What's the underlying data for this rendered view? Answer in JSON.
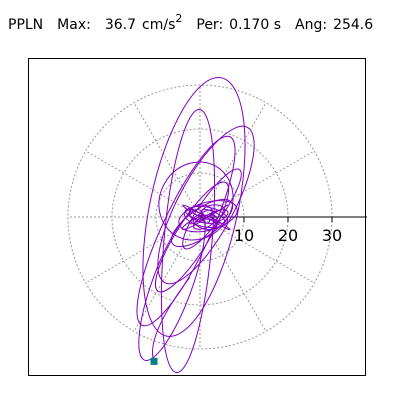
{
  "header": {
    "station": "PPLN",
    "max_label": "Max:",
    "max_value": "36.7",
    "max_unit_base": "cm/s",
    "max_unit_exp": "2",
    "per_label": "Per:",
    "per_value": "0.170 s",
    "ang_label": "Ang:",
    "ang_value": "254.6"
  },
  "chart_data": {
    "type": "polar-particle-motion",
    "title": "PPLN Max: 36.7 cm/s2 Per: 0.170 s Ang: 254.6",
    "radial_ticks": [
      {
        "value": 10,
        "label": "10"
      },
      {
        "value": 20,
        "label": "20"
      },
      {
        "value": 30,
        "label": "30"
      }
    ],
    "radial_max": 30,
    "angular_grid_step_deg": 30,
    "grid": true,
    "colors": {
      "trace": "#8000c0",
      "grid": "#999999",
      "axis": "#000000",
      "end_marker": "#008080"
    },
    "end_point": {
      "x": -11.5,
      "y": -36.1
    },
    "trace_loops": [
      {
        "cx": 2.0,
        "cy": 0.2,
        "rx": 7.5,
        "ry": 3.5,
        "rot": 15
      },
      {
        "cx": 1.5,
        "cy": 0.0,
        "rx": 5.5,
        "ry": 2.5,
        "rot": -10
      },
      {
        "cx": 0.5,
        "cy": -1.5,
        "rx": 9.0,
        "ry": 3.5,
        "rot": 35
      },
      {
        "cx": -1.0,
        "cy": 4.0,
        "rx": 10.0,
        "ry": 9.0,
        "rot": 60
      },
      {
        "cx": 3.0,
        "cy": 2.0,
        "rx": 12.0,
        "ry": 3.0,
        "rot": 55
      },
      {
        "cx": -2.0,
        "cy": -5.0,
        "rx": 16.0,
        "ry": 4.0,
        "rot": 58
      },
      {
        "cx": 1.5,
        "cy": 3.0,
        "rx": 22.0,
        "ry": 7.0,
        "rot": 62
      },
      {
        "cx": -3.5,
        "cy": -3.5,
        "rx": 26.0,
        "ry": 6.0,
        "rot": 65
      },
      {
        "cx": -1.5,
        "cy": 2.5,
        "rx": 33.0,
        "ry": 11.0,
        "rot": 78
      },
      {
        "cx": -3.0,
        "cy": -6.0,
        "rx": 33.0,
        "ry": 6.0,
        "rot": 85
      },
      {
        "cx": -7.0,
        "cy": -17.0,
        "rx": 20.0,
        "ry": 5.0,
        "rot": 70
      }
    ]
  }
}
